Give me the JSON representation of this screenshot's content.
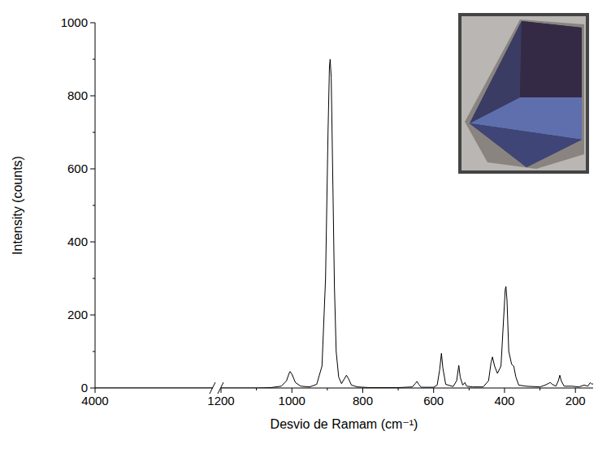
{
  "chart_data": [
    {
      "type": "line",
      "y_label": "Intensity (counts)",
      "xlim": [
        4000,
        1200
      ],
      "xticks": [
        4000
      ],
      "ylim": [
        0,
        1000
      ],
      "yticks": [
        0,
        200,
        400,
        600,
        800,
        1000
      ],
      "x": [
        4000,
        3500,
        3000,
        2500,
        2000,
        1500,
        1200
      ],
      "series": [
        {
          "color": "#000000",
          "values": [
            0,
            0,
            0,
            0,
            0,
            0,
            0
          ]
        }
      ]
    },
    {
      "type": "line",
      "x_label": "Desvio de Ramam (cm⁻¹)",
      "xlim": [
        1200,
        150
      ],
      "xticks": [
        1200,
        1000,
        800,
        600,
        400,
        200
      ],
      "ylim": [
        0,
        1000
      ],
      "x": [
        1200,
        1100,
        1060,
        1030,
        1015,
        1008,
        1005,
        1000,
        990,
        975,
        950,
        930,
        915,
        905,
        898,
        894,
        892,
        889,
        885,
        880,
        875,
        868,
        860,
        852,
        846,
        840,
        832,
        815,
        780,
        700,
        660,
        652,
        647,
        642,
        635,
        600,
        590,
        583,
        578,
        574,
        566,
        545,
        535,
        529,
        525,
        518,
        512,
        507,
        490,
        460,
        445,
        438,
        434,
        428,
        420,
        410,
        402,
        398,
        396,
        393,
        388,
        380,
        374,
        368,
        360,
        340,
        300,
        285,
        275,
        271,
        265,
        255,
        248,
        244,
        240,
        232,
        210,
        190,
        175,
        165,
        158,
        153,
        150
      ],
      "series": [
        {
          "color": "#000000",
          "values": [
            0,
            0,
            1,
            5,
            20,
            40,
            45,
            38,
            15,
            5,
            3,
            10,
            60,
            300,
            700,
            880,
            900,
            850,
            600,
            280,
            100,
            30,
            12,
            25,
            35,
            25,
            8,
            3,
            1,
            1,
            3,
            12,
            18,
            10,
            2,
            2,
            8,
            50,
            95,
            55,
            10,
            4,
            20,
            62,
            30,
            8,
            15,
            5,
            3,
            3,
            20,
            70,
            85,
            60,
            40,
            60,
            200,
            270,
            278,
            240,
            100,
            65,
            60,
            30,
            8,
            5,
            3,
            8,
            13,
            15,
            10,
            5,
            20,
            35,
            20,
            5,
            5,
            3,
            8,
            5,
            15,
            10,
            12
          ]
        }
      ]
    }
  ]
}
